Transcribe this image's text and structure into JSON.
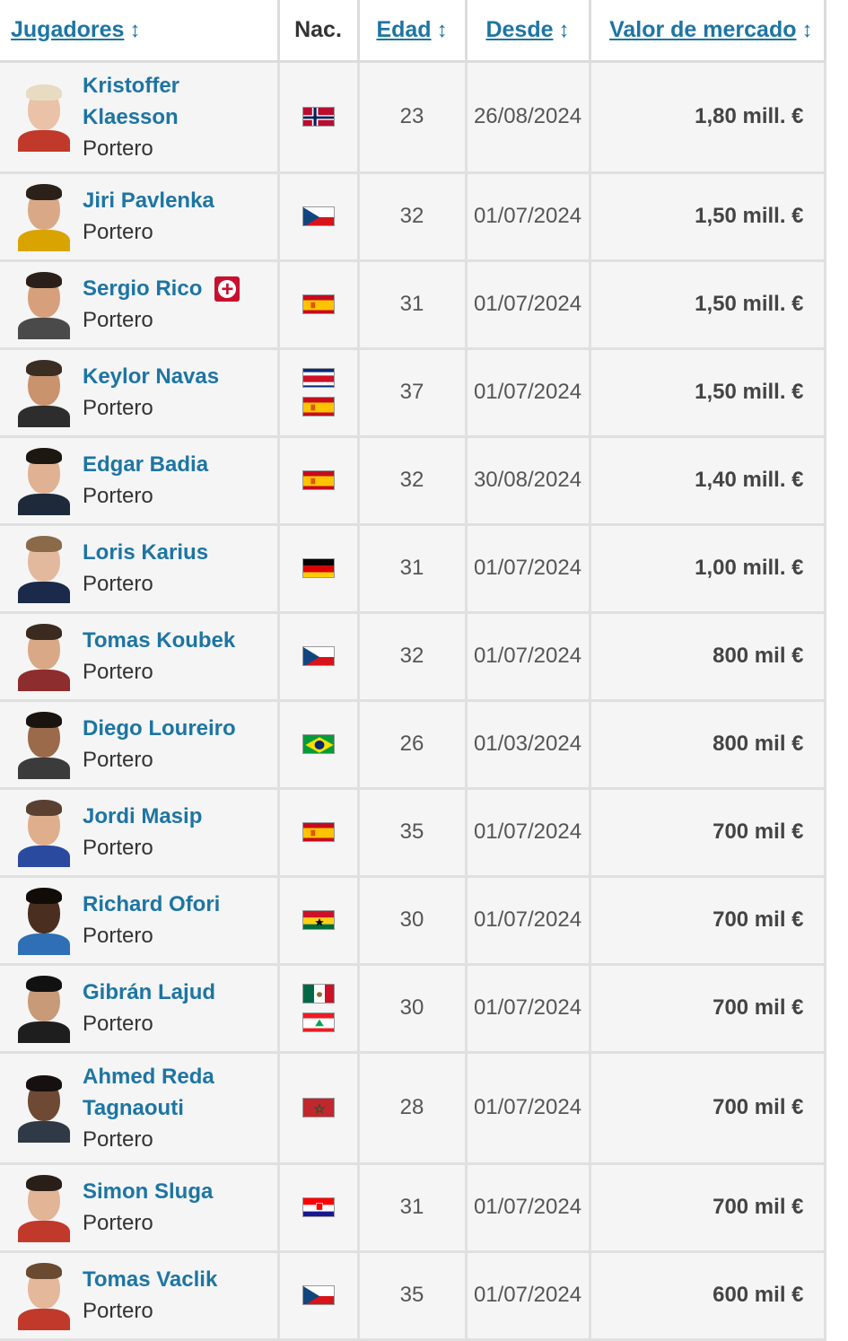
{
  "headers": {
    "players": "Jugadores",
    "nat": "Nac.",
    "age": "Edad",
    "since": "Desde",
    "value": "Valor de mercado",
    "sort_arrow": "↕"
  },
  "rows": [
    {
      "name": "Kristoffer Klaesson",
      "position": "Portero",
      "age": "23",
      "since": "26/08/2024",
      "value": "1,80 mill. €",
      "flags": [
        "norway"
      ],
      "injury": false,
      "skin": "#e9c2a8",
      "hair": "#e7dcc2",
      "shirt": "#c0392b"
    },
    {
      "name": "Jiri Pavlenka",
      "position": "Portero",
      "age": "32",
      "since": "01/07/2024",
      "value": "1,50 mill. €",
      "flags": [
        "czech"
      ],
      "injury": false,
      "skin": "#d9a987",
      "hair": "#2c211a",
      "shirt": "#d9a400"
    },
    {
      "name": "Sergio Rico",
      "position": "Portero",
      "age": "31",
      "since": "01/07/2024",
      "value": "1,50 mill. €",
      "flags": [
        "spain"
      ],
      "injury": true,
      "skin": "#d6a07c",
      "hair": "#2a2019",
      "shirt": "#4a4a4a"
    },
    {
      "name": "Keylor Navas",
      "position": "Portero",
      "age": "37",
      "since": "01/07/2024",
      "value": "1,50 mill. €",
      "flags": [
        "costarica",
        "spain"
      ],
      "injury": false,
      "skin": "#c9936e",
      "hair": "#3a2d22",
      "shirt": "#2d2d2d"
    },
    {
      "name": "Edgar Badia",
      "position": "Portero",
      "age": "32",
      "since": "30/08/2024",
      "value": "1,40 mill. €",
      "flags": [
        "spain"
      ],
      "injury": false,
      "skin": "#e0b193",
      "hair": "#1d1712",
      "shirt": "#1e2a3a"
    },
    {
      "name": "Loris Karius",
      "position": "Portero",
      "age": "31",
      "since": "01/07/2024",
      "value": "1,00 mill. €",
      "flags": [
        "germany"
      ],
      "injury": false,
      "skin": "#e3b99d",
      "hair": "#8a6a48",
      "shirt": "#1b2a4a"
    },
    {
      "name": "Tomas Koubek",
      "position": "Portero",
      "age": "32",
      "since": "01/07/2024",
      "value": "800 mil €",
      "flags": [
        "czech"
      ],
      "injury": false,
      "skin": "#d9a987",
      "hair": "#3a2a1f",
      "shirt": "#8e2d2d"
    },
    {
      "name": "Diego Loureiro",
      "position": "Portero",
      "age": "26",
      "since": "01/03/2024",
      "value": "800 mil €",
      "flags": [
        "brazil"
      ],
      "injury": false,
      "skin": "#9a6a4a",
      "hair": "#1a1410",
      "shirt": "#3b3b3b"
    },
    {
      "name": "Jordi Masip",
      "position": "Portero",
      "age": "35",
      "since": "01/07/2024",
      "value": "700 mil €",
      "flags": [
        "spain"
      ],
      "injury": false,
      "skin": "#dfae8c",
      "hair": "#5a4030",
      "shirt": "#2a4aa0"
    },
    {
      "name": "Richard Ofori",
      "position": "Portero",
      "age": "30",
      "since": "01/07/2024",
      "value": "700 mil €",
      "flags": [
        "ghana"
      ],
      "injury": false,
      "skin": "#4a2e20",
      "hair": "#120c08",
      "shirt": "#2e6fb5"
    },
    {
      "name": "Gibrán Lajud",
      "position": "Portero",
      "age": "30",
      "since": "01/07/2024",
      "value": "700 mil €",
      "flags": [
        "mexico",
        "lebanon"
      ],
      "injury": false,
      "skin": "#c89a78",
      "hair": "#111111",
      "shirt": "#1e1e1e"
    },
    {
      "name": "Ahmed Reda Tagnaouti",
      "position": "Portero",
      "age": "28",
      "since": "01/07/2024",
      "value": "700 mil €",
      "flags": [
        "morocco"
      ],
      "injury": false,
      "skin": "#6e4a34",
      "hair": "#161010",
      "shirt": "#2f3a46"
    },
    {
      "name": "Simon Sluga",
      "position": "Portero",
      "age": "31",
      "since": "01/07/2024",
      "value": "700 mil €",
      "flags": [
        "croatia"
      ],
      "injury": false,
      "skin": "#e2b597",
      "hair": "#2a1f18",
      "shirt": "#c0392b"
    },
    {
      "name": "Tomas Vaclik",
      "position": "Portero",
      "age": "35",
      "since": "01/07/2024",
      "value": "600 mil €",
      "flags": [
        "czech"
      ],
      "injury": false,
      "skin": "#e4b89a",
      "hair": "#6a4a30",
      "shirt": "#c0392b"
    }
  ]
}
